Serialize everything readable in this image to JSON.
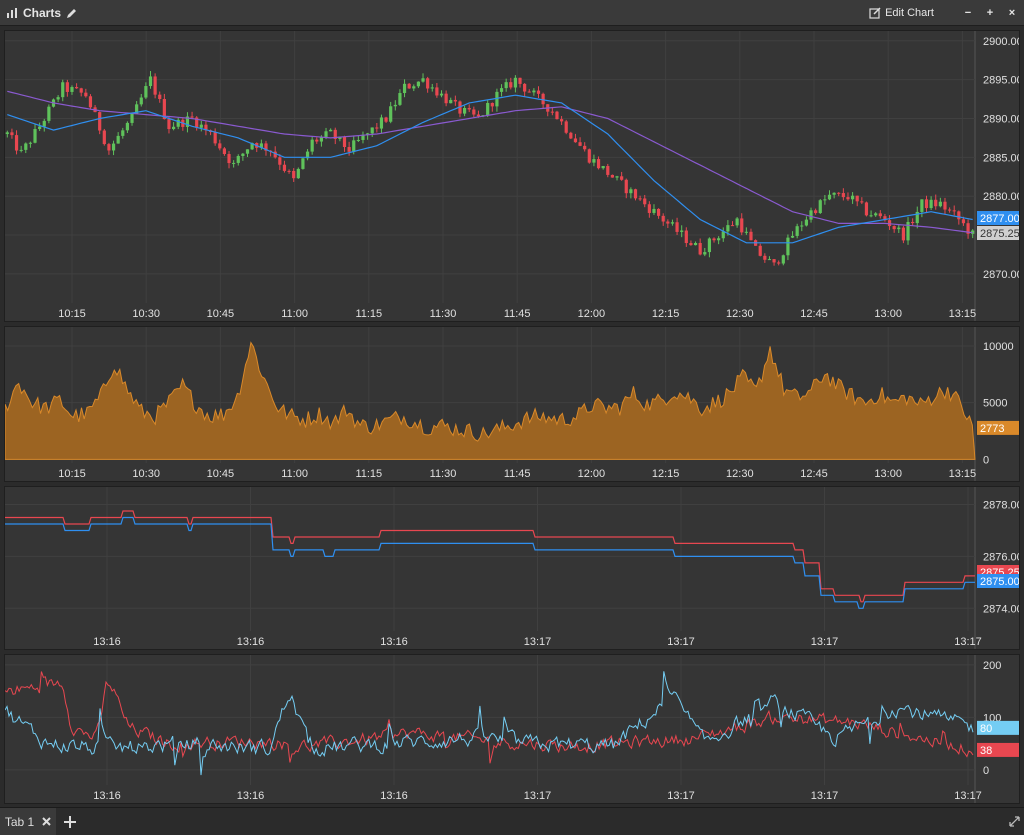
{
  "window": {
    "title": "Charts",
    "edit_label": "Edit Chart",
    "minimize": "−",
    "maximize": "+",
    "close": "×"
  },
  "tabs": [
    {
      "label": "Tab 1"
    }
  ],
  "colors": {
    "up": "#5fc25b",
    "down": "#e84750",
    "ma_fast": "#2f8ff0",
    "ma_slow": "#8a5ad0",
    "volume": "#d9892a",
    "ask": "#e84750",
    "bid": "#2f8ff0",
    "osc_a": "#e84750",
    "osc_b": "#74cdf3"
  },
  "chart_data": [
    {
      "type": "candlestick",
      "title": "",
      "x_ticks": [
        "10:15",
        "10:30",
        "10:45",
        "11:00",
        "11:15",
        "11:30",
        "11:45",
        "12:00",
        "12:15",
        "12:30",
        "12:45",
        "13:00",
        "13:15"
      ],
      "y_ticks": [
        "2900.00",
        "2895.00",
        "2890.00",
        "2885.00",
        "2880.00",
        "2875.00",
        "2870.00"
      ],
      "ylim": [
        2866,
        2901
      ],
      "price_labels": [
        {
          "text": "2877.00",
          "color": "#2f8ff0"
        },
        {
          "text": "2875.25",
          "color": "#d0d0d0"
        }
      ],
      "anchors_close": [
        [
          0,
          2888
        ],
        [
          3,
          2885.5
        ],
        [
          7,
          2889
        ],
        [
          12,
          2894
        ],
        [
          17,
          2893
        ],
        [
          22,
          2886
        ],
        [
          27,
          2890
        ],
        [
          31,
          2895
        ],
        [
          35,
          2889
        ],
        [
          40,
          2890
        ],
        [
          44,
          2888
        ],
        [
          49,
          2884
        ],
        [
          53,
          2887
        ],
        [
          57,
          2886
        ],
        [
          62,
          2882
        ],
        [
          66,
          2887
        ],
        [
          70,
          2888
        ],
        [
          74,
          2886
        ],
        [
          78,
          2888
        ],
        [
          82,
          2890
        ],
        [
          86,
          2894
        ],
        [
          90,
          2895
        ],
        [
          94,
          2893
        ],
        [
          98,
          2891
        ],
        [
          102,
          2890
        ],
        [
          106,
          2893
        ],
        [
          110,
          2895
        ],
        [
          114,
          2893
        ],
        [
          118,
          2891
        ],
        [
          122,
          2888
        ],
        [
          126,
          2885
        ],
        [
          130,
          2883
        ],
        [
          134,
          2881
        ],
        [
          138,
          2879
        ],
        [
          142,
          2877
        ],
        [
          146,
          2875
        ],
        [
          150,
          2873
        ],
        [
          154,
          2875
        ],
        [
          158,
          2877
        ],
        [
          162,
          2873
        ],
        [
          166,
          2871
        ],
        [
          170,
          2875
        ],
        [
          174,
          2878
        ],
        [
          178,
          2880
        ],
        [
          182,
          2880
        ],
        [
          186,
          2878
        ],
        [
          190,
          2877
        ],
        [
          194,
          2875
        ],
        [
          198,
          2879
        ],
        [
          202,
          2879
        ],
        [
          206,
          2877
        ],
        [
          209,
          2875
        ]
      ],
      "ma_fast_anchors": [
        [
          0,
          2890.5
        ],
        [
          10,
          2888.5
        ],
        [
          20,
          2890
        ],
        [
          30,
          2891
        ],
        [
          40,
          2889
        ],
        [
          50,
          2887.5
        ],
        [
          60,
          2885
        ],
        [
          70,
          2885
        ],
        [
          80,
          2886.5
        ],
        [
          90,
          2889.5
        ],
        [
          100,
          2892
        ],
        [
          110,
          2893
        ],
        [
          120,
          2892
        ],
        [
          130,
          2888
        ],
        [
          140,
          2882
        ],
        [
          150,
          2877
        ],
        [
          160,
          2874
        ],
        [
          170,
          2874
        ],
        [
          180,
          2876
        ],
        [
          190,
          2877
        ],
        [
          200,
          2878
        ],
        [
          209,
          2877
        ]
      ],
      "ma_slow_anchors": [
        [
          0,
          2893.5
        ],
        [
          10,
          2892
        ],
        [
          20,
          2891
        ],
        [
          30,
          2890.5
        ],
        [
          40,
          2890
        ],
        [
          50,
          2889
        ],
        [
          60,
          2888
        ],
        [
          70,
          2887.5
        ],
        [
          80,
          2888
        ],
        [
          90,
          2889
        ],
        [
          100,
          2890
        ],
        [
          110,
          2891
        ],
        [
          120,
          2891.5
        ],
        [
          130,
          2890
        ],
        [
          140,
          2887
        ],
        [
          150,
          2884
        ],
        [
          160,
          2881
        ],
        [
          170,
          2878
        ],
        [
          180,
          2876.5
        ],
        [
          190,
          2876.5
        ],
        [
          200,
          2876
        ],
        [
          209,
          2875.3
        ]
      ]
    },
    {
      "type": "area",
      "title": "",
      "x_ticks": [
        "10:15",
        "10:30",
        "10:45",
        "11:00",
        "11:15",
        "11:30",
        "11:45",
        "12:00",
        "12:15",
        "12:30",
        "12:45",
        "13:00",
        "13:15"
      ],
      "y_ticks": [
        "10000",
        "5000",
        "0"
      ],
      "ylim": [
        -500,
        11500
      ],
      "last_label": "2773",
      "anchors": [
        [
          0,
          4500
        ],
        [
          5,
          6800
        ],
        [
          10,
          5000
        ],
        [
          15,
          4500
        ],
        [
          20,
          5200
        ],
        [
          25,
          3800
        ],
        [
          30,
          4000
        ],
        [
          35,
          5500
        ],
        [
          40,
          8500
        ],
        [
          45,
          6000
        ],
        [
          50,
          4200
        ],
        [
          55,
          3800
        ],
        [
          60,
          5000
        ],
        [
          65,
          6500
        ],
        [
          70,
          4800
        ],
        [
          75,
          3800
        ],
        [
          80,
          4000
        ],
        [
          85,
          5500
        ],
        [
          90,
          10300
        ],
        [
          95,
          7000
        ],
        [
          100,
          4500
        ],
        [
          105,
          3800
        ],
        [
          110,
          3500
        ],
        [
          115,
          4000
        ],
        [
          120,
          3200
        ],
        [
          125,
          4400
        ],
        [
          130,
          3000
        ],
        [
          135,
          2900
        ],
        [
          140,
          3400
        ],
        [
          145,
          3800
        ],
        [
          150,
          3300
        ],
        [
          155,
          2800
        ],
        [
          160,
          3000
        ],
        [
          165,
          2700
        ],
        [
          170,
          2500
        ],
        [
          175,
          2200
        ],
        [
          180,
          2600
        ],
        [
          185,
          3000
        ],
        [
          190,
          3500
        ],
        [
          195,
          3800
        ],
        [
          200,
          3600
        ],
        [
          205,
          3500
        ],
        [
          210,
          3900
        ],
        [
          215,
          4800
        ],
        [
          220,
          4500
        ],
        [
          225,
          4600
        ],
        [
          230,
          5800
        ],
        [
          235,
          4800
        ],
        [
          240,
          5200
        ],
        [
          245,
          6000
        ],
        [
          250,
          5500
        ],
        [
          255,
          4500
        ],
        [
          260,
          5000
        ],
        [
          265,
          5800
        ],
        [
          270,
          7200
        ],
        [
          275,
          6000
        ],
        [
          280,
          9800
        ],
        [
          285,
          6200
        ],
        [
          290,
          5400
        ],
        [
          295,
          6000
        ],
        [
          300,
          7600
        ],
        [
          305,
          6400
        ],
        [
          310,
          5600
        ],
        [
          315,
          5000
        ],
        [
          320,
          5800
        ],
        [
          325,
          5000
        ],
        [
          330,
          5500
        ],
        [
          335,
          4800
        ],
        [
          340,
          5600
        ],
        [
          345,
          6200
        ],
        [
          350,
          4800
        ],
        [
          354,
          2773
        ]
      ]
    },
    {
      "type": "line",
      "title": "",
      "x_ticks": [
        "13:16",
        "13:16",
        "13:16",
        "13:17",
        "13:17",
        "13:17",
        "13:17"
      ],
      "y_ticks": [
        "2878.00",
        "2876.00",
        "2874.00"
      ],
      "ylim": [
        2873.2,
        2878.6
      ],
      "price_labels": [
        {
          "text": "2875.25",
          "color": "#e84750"
        },
        {
          "text": "2875.00",
          "color": "#2f8ff0"
        }
      ],
      "ask_steps": [
        [
          0,
          2877.5
        ],
        [
          55,
          2877.5
        ],
        [
          60,
          2877.25
        ],
        [
          80,
          2877.25
        ],
        [
          85,
          2877.5
        ],
        [
          110,
          2877.5
        ],
        [
          118,
          2877.75
        ],
        [
          130,
          2877.5
        ],
        [
          178,
          2877.5
        ],
        [
          183,
          2877.25
        ],
        [
          188,
          2877.5
        ],
        [
          260,
          2877.5
        ],
        [
          268,
          2876.75
        ],
        [
          285,
          2876.5
        ],
        [
          290,
          2876.75
        ],
        [
          370,
          2876.75
        ],
        [
          375,
          2877.0
        ],
        [
          520,
          2877.0
        ],
        [
          530,
          2876.75
        ],
        [
          660,
          2876.75
        ],
        [
          670,
          2876.5
        ],
        [
          760,
          2876.5
        ],
        [
          790,
          2876.25
        ],
        [
          800,
          2875.75
        ],
        [
          815,
          2874.75
        ],
        [
          830,
          2874.5
        ],
        [
          850,
          2874.5
        ],
        [
          855,
          2874.25
        ],
        [
          860,
          2874.5
        ],
        [
          885,
          2874.5
        ],
        [
          900,
          2875.0
        ],
        [
          940,
          2875.0
        ],
        [
          960,
          2875.25
        ],
        [
          972,
          2875.25
        ]
      ],
      "bid_steps": [
        [
          0,
          2877.25
        ],
        [
          55,
          2877.25
        ],
        [
          60,
          2877.0
        ],
        [
          80,
          2877.0
        ],
        [
          85,
          2877.25
        ],
        [
          110,
          2877.25
        ],
        [
          118,
          2877.5
        ],
        [
          130,
          2877.25
        ],
        [
          178,
          2877.25
        ],
        [
          183,
          2877.0
        ],
        [
          188,
          2877.25
        ],
        [
          260,
          2877.25
        ],
        [
          268,
          2876.25
        ],
        [
          285,
          2876.0
        ],
        [
          290,
          2876.25
        ],
        [
          315,
          2876.25
        ],
        [
          320,
          2876.0
        ],
        [
          330,
          2876.25
        ],
        [
          370,
          2876.25
        ],
        [
          375,
          2876.5
        ],
        [
          520,
          2876.5
        ],
        [
          530,
          2876.25
        ],
        [
          660,
          2876.25
        ],
        [
          670,
          2876.0
        ],
        [
          760,
          2876.0
        ],
        [
          790,
          2875.75
        ],
        [
          800,
          2875.25
        ],
        [
          815,
          2874.5
        ],
        [
          830,
          2874.25
        ],
        [
          848,
          2874.25
        ],
        [
          853,
          2874.0
        ],
        [
          860,
          2874.25
        ],
        [
          885,
          2874.25
        ],
        [
          900,
          2874.75
        ],
        [
          940,
          2874.75
        ],
        [
          960,
          2875.0
        ],
        [
          972,
          2875.0
        ]
      ]
    },
    {
      "type": "line",
      "title": "",
      "x_ticks": [
        "13:16",
        "13:16",
        "13:16",
        "13:17",
        "13:17",
        "13:17",
        "13:17"
      ],
      "y_ticks": [
        "200",
        "100",
        "0"
      ],
      "ylim": [
        -25,
        215
      ],
      "last_labels": [
        {
          "text": "80",
          "color": "#74cdf3"
        },
        {
          "text": "38",
          "color": "#e84750"
        }
      ]
    }
  ]
}
